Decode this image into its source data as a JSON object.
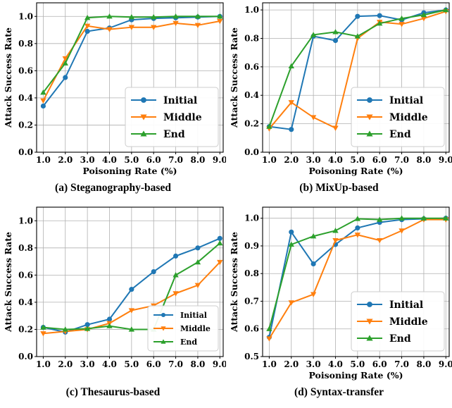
{
  "colors": {
    "Initial": "#1f77b4",
    "Middle": "#ff7f0e",
    "End": "#2ca02c"
  },
  "chart_data": [
    {
      "type": "line",
      "caption": "(a) Steganography-based",
      "xlabel": "Poisoning Rate (%)",
      "ylabel": "Attack Success Rate",
      "x": [
        1,
        2,
        3,
        4,
        5,
        6,
        7,
        8,
        9
      ],
      "xticks": [
        "1.0",
        "2.0",
        "3.0",
        "4.0",
        "5.0",
        "6.0",
        "7.0",
        "8.0",
        "9.0"
      ],
      "ylim": [
        0,
        1.1
      ],
      "yticks": [
        "0.0",
        "0.2",
        "0.4",
        "0.6",
        "0.8",
        "1.0"
      ],
      "legend_position": "lower-right",
      "series": [
        {
          "name": "Initial",
          "values": [
            0.34,
            0.55,
            0.89,
            0.915,
            0.975,
            0.985,
            0.99,
            0.995,
            1.0
          ]
        },
        {
          "name": "Middle",
          "values": [
            0.38,
            0.69,
            0.93,
            0.905,
            0.92,
            0.92,
            0.95,
            0.935,
            0.965
          ]
        },
        {
          "name": "End",
          "values": [
            0.44,
            0.655,
            0.99,
            1.0,
            0.995,
            0.995,
            1.0,
            1.0,
            1.0
          ]
        }
      ]
    },
    {
      "type": "line",
      "caption": "(b) MixUp-based",
      "xlabel": "Poisoning Rate (%)",
      "ylabel": "Attack Success Rate",
      "x": [
        1,
        2,
        3,
        4,
        5,
        6,
        7,
        8,
        9
      ],
      "xticks": [
        "1.0",
        "2.0",
        "3.0",
        "4.0",
        "5.0",
        "6.0",
        "7.0",
        "8.0",
        "9.0"
      ],
      "ylim": [
        0,
        1.05
      ],
      "yticks": [
        "0.0",
        "0.2",
        "0.4",
        "0.6",
        "0.8",
        "1.0"
      ],
      "legend_position": "lower-right",
      "series": [
        {
          "name": "Initial",
          "values": [
            0.18,
            0.16,
            0.815,
            0.785,
            0.955,
            0.96,
            0.93,
            0.98,
            1.0
          ]
        },
        {
          "name": "Middle",
          "values": [
            0.165,
            0.35,
            0.245,
            0.17,
            0.8,
            0.915,
            0.9,
            0.94,
            0.99
          ]
        },
        {
          "name": "End",
          "values": [
            0.18,
            0.605,
            0.825,
            0.845,
            0.815,
            0.905,
            0.94,
            0.965,
            1.0
          ]
        }
      ]
    },
    {
      "type": "line",
      "caption": "(c) Thesaurus-based",
      "xlabel": "",
      "ylabel": "Attack Success Rate",
      "x": [
        1,
        2,
        3,
        4,
        5,
        6,
        7,
        8,
        9
      ],
      "xticks": [
        "1.0",
        "2.0",
        "3.0",
        "4.0",
        "5.0",
        "6.0",
        "7.0",
        "8.0",
        "9.0"
      ],
      "ylim": [
        0,
        1.1
      ],
      "yticks": [
        "0.0",
        "0.2",
        "0.4",
        "0.6",
        "0.8",
        "1.0"
      ],
      "legend_position": "lower-right",
      "legend_style": "plain",
      "series": [
        {
          "name": "Initial",
          "values": [
            0.215,
            0.18,
            0.235,
            0.275,
            0.495,
            0.625,
            0.74,
            0.8,
            0.87
          ]
        },
        {
          "name": "Middle",
          "values": [
            0.17,
            0.185,
            0.2,
            0.245,
            0.34,
            0.375,
            0.465,
            0.525,
            0.695
          ]
        },
        {
          "name": "End",
          "values": [
            0.215,
            0.2,
            0.205,
            0.225,
            0.2,
            0.2,
            0.6,
            0.695,
            0.835
          ]
        }
      ]
    },
    {
      "type": "line",
      "caption": "(d) Syntax-transfer",
      "xlabel": "Poisoning Rate (%)",
      "ylabel": "Attack Success Rate",
      "x": [
        1,
        2,
        3,
        4,
        5,
        6,
        7,
        8,
        9
      ],
      "xticks": [
        "1.0",
        "2.0",
        "3.0",
        "4.0",
        "5.0",
        "6.0",
        "7.0",
        "8.0",
        "9.0"
      ],
      "ylim": [
        0.5,
        1.04
      ],
      "yticks": [
        "0.5",
        "0.6",
        "0.7",
        "0.8",
        "0.9",
        "1.0"
      ],
      "legend_position": "lower-right",
      "series": [
        {
          "name": "Initial",
          "values": [
            0.57,
            0.95,
            0.835,
            0.905,
            0.965,
            0.985,
            0.995,
            0.998,
            1.0
          ]
        },
        {
          "name": "Middle",
          "values": [
            0.565,
            0.695,
            0.725,
            0.92,
            0.94,
            0.92,
            0.955,
            0.995,
            0.995
          ]
        },
        {
          "name": "End",
          "values": [
            0.6,
            0.905,
            0.935,
            0.955,
            0.998,
            0.995,
            1.0,
            1.0,
            1.0
          ]
        }
      ]
    }
  ]
}
